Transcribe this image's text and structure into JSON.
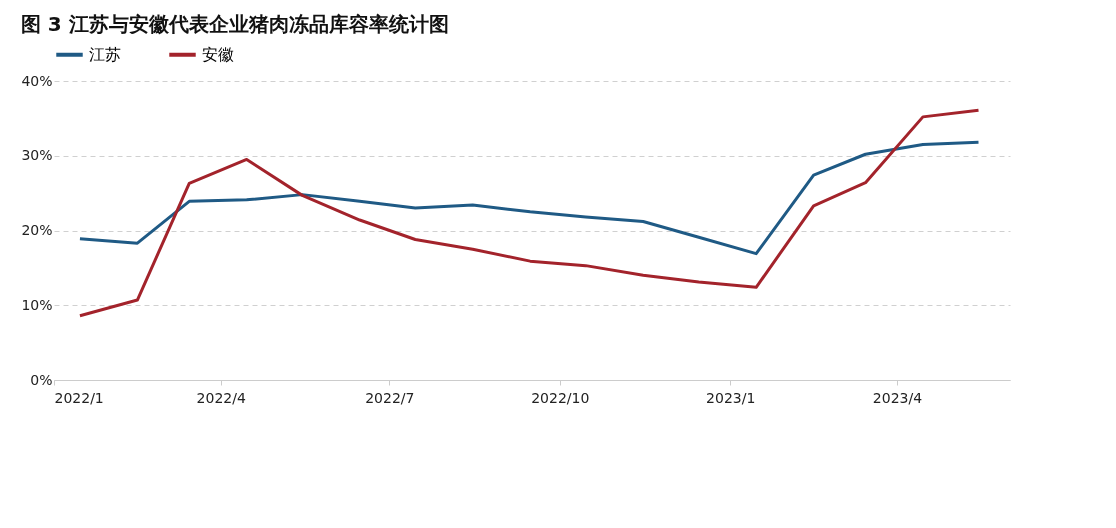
{
  "chart_data": {
    "type": "line",
    "title": "图 3 江苏与安徽代表企业猪肉冻品库容率统计图",
    "x": [
      "2022-01-15",
      "2022-02-15",
      "2022-03-15",
      "2022-04-15",
      "2022-05-15",
      "2022-06-15",
      "2022-07-15",
      "2022-08-15",
      "2022-09-15",
      "2022-10-15",
      "2022-11-15",
      "2022-12-15",
      "2023-01-15",
      "2023-02-15",
      "2023-03-15",
      "2023-04-15",
      "2023-05-15"
    ],
    "series": [
      {
        "name": "江苏",
        "color": "#1f5a85",
        "values": [
          18.9,
          18.3,
          23.9,
          24.1,
          24.8,
          23.9,
          23.0,
          23.4,
          22.5,
          21.8,
          21.2,
          19.1,
          16.9,
          27.4,
          30.2,
          31.5,
          31.8
        ]
      },
      {
        "name": "安徽",
        "color": "#a3232b",
        "values": [
          8.6,
          10.7,
          26.3,
          29.5,
          24.7,
          21.4,
          18.8,
          17.5,
          15.9,
          15.3,
          14.0,
          13.1,
          12.4,
          23.3,
          26.4,
          35.2,
          36.1
        ]
      }
    ],
    "xlim": [
      "2022-01-01",
      "2023-06-01"
    ],
    "xticks": [
      {
        "value": "2022-01-01",
        "label": "2022/1"
      },
      {
        "value": "2022-04-01",
        "label": "2022/4"
      },
      {
        "value": "2022-07-01",
        "label": "2022/7"
      },
      {
        "value": "2022-10-01",
        "label": "2022/10"
      },
      {
        "value": "2023-01-01",
        "label": "2023/1"
      },
      {
        "value": "2023-04-01",
        "label": "2023/4"
      }
    ],
    "ylim": [
      0,
      40
    ],
    "yticks": [
      {
        "value": 0,
        "label": "0%"
      },
      {
        "value": 10,
        "label": "10%"
      },
      {
        "value": 20,
        "label": "20%"
      },
      {
        "value": 30,
        "label": "30%"
      },
      {
        "value": 40,
        "label": "40%"
      }
    ],
    "grid": "y",
    "legend": "top",
    "marker": "none",
    "line_style": "solid"
  }
}
